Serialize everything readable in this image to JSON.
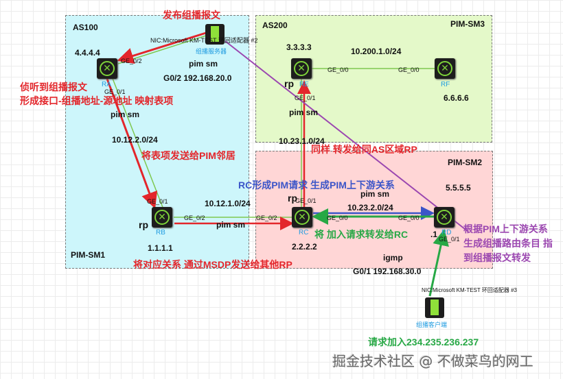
{
  "regions": {
    "as100": "AS100",
    "pim_sm1": "PIM-SM1",
    "as200": "AS200",
    "pim_sm3": "PIM-SM3",
    "pim_sm2": "PIM-SM2"
  },
  "devices": {
    "ra": "RA",
    "rb": "RB",
    "rc": "RC",
    "rd": "RD",
    "re": "RE",
    "rf": "RF",
    "server": "组播服务器",
    "client": "组播客户端"
  },
  "addresses": {
    "ra": "4.4.4.4",
    "rb": "1.1.1.1",
    "rc": "2.2.2.2",
    "rd": "5.5.5.5",
    "re": "3.3.3.3",
    "rf": "6.6.6.6",
    "rd_dot": ".1"
  },
  "networks": {
    "n1": "10.12.2.0/24",
    "n2": "10.12.1.0/24",
    "n3": "10.23.1.0/24",
    "n4": "10.23.2.0/24",
    "n5": "10.200.1.0/24",
    "srv_net": "G0/2 192.168.20.0",
    "cli_net": "G0/1  192.168.30.0"
  },
  "protocols": {
    "p1": "pim sm",
    "p2": "pim sm",
    "p3": "pim sm",
    "p4": "pim sm",
    "p5": "pim sm",
    "igmp": "igmp"
  },
  "roles": {
    "rb": "rp",
    "rc": "rp",
    "re": "rp"
  },
  "ports": {
    "ra_g02": "GE_0/2",
    "ra_g01": "GE_0/1",
    "rb_g01": "GE_0/1",
    "rb_g02": "GE_0/2",
    "rc_g02": "GE_0/2",
    "rc_g01": "GE_0/1",
    "rc_g00": "GE_0/0",
    "rd_g00": "GE_0/0",
    "rd_g01": "GE_0/1",
    "re_g00": "GE_0/0",
    "re_g01": "GE_0/1",
    "rf_g00": "GE_0/0"
  },
  "nics": {
    "server": "NIC:Microsoft KM-TEST 环回适配器 #2",
    "client": "NIC:Microsoft KM-TEST 环回适配器 #3"
  },
  "annotations": {
    "a1": "发布组播报文",
    "a2": "侦听到组播报文",
    "a3": "形成接口-组播地址-源地址 映射表项",
    "a4": "将表项发送给PIM邻居",
    "a5": "将对应关系 通过MSDP发送给其他RP",
    "a6": "同样 转发给同AS区域RP",
    "a7": "RC形成PIM请求 生成PIM上下游关系",
    "a8": "将 加入请求转发给RC",
    "a9": "根据PIM上下游关系",
    "a10": "生成组播路由条目 指",
    "a11": "到组播报文转发",
    "a12": "请求加入234.235.236.237"
  },
  "watermark": "掘金技术社区 @ 不做菜鸟的网工",
  "colors": {
    "red": "#e3262b",
    "green": "#27a845",
    "blue": "#3b55c8",
    "purple": "#9b47b0",
    "link": "#7ec850"
  }
}
